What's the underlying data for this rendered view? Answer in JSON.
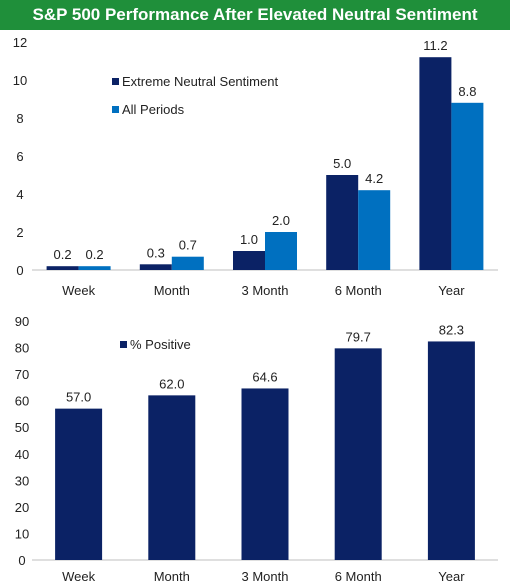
{
  "title": "S&P 500 Performance After Elevated Neutral Sentiment",
  "colors": {
    "title_bg": "#1f8f3a",
    "title_text": "#ffffff",
    "dark_navy": "#0b2265",
    "blue": "#0070c0",
    "axis": "#bfbfbf",
    "text": "#222222"
  },
  "chart_data": [
    {
      "type": "bar",
      "categories": [
        "Week",
        "Month",
        "3 Month",
        "6 Month",
        "Year"
      ],
      "series": [
        {
          "name": "Extreme Neutral Sentiment",
          "values": [
            0.2,
            0.3,
            1.0,
            5.0,
            11.2
          ],
          "labels": [
            "0.2",
            "0.3",
            "1.0",
            "5.0",
            "11.2"
          ]
        },
        {
          "name": "All Periods",
          "values": [
            0.2,
            0.7,
            2.0,
            4.2,
            8.8
          ],
          "labels": [
            "0.2",
            "0.7",
            "2.0",
            "4.2",
            "8.8"
          ]
        }
      ],
      "ylim": [
        0,
        12
      ],
      "yticks": [
        0,
        2,
        4,
        6,
        8,
        10,
        12
      ],
      "grid": false,
      "legend_placement": "top-left"
    },
    {
      "type": "bar",
      "categories": [
        "Week",
        "Month",
        "3 Month",
        "6 Month",
        "Year"
      ],
      "series": [
        {
          "name": "% Positive",
          "values": [
            57.0,
            62.0,
            64.6,
            79.7,
            82.3
          ],
          "labels": [
            "57.0",
            "62.0",
            "64.6",
            "79.7",
            "82.3"
          ]
        }
      ],
      "ylim": [
        0,
        90
      ],
      "yticks": [
        0,
        10,
        20,
        30,
        40,
        50,
        60,
        70,
        80,
        90
      ],
      "grid": false,
      "legend_placement": "top-left"
    }
  ]
}
